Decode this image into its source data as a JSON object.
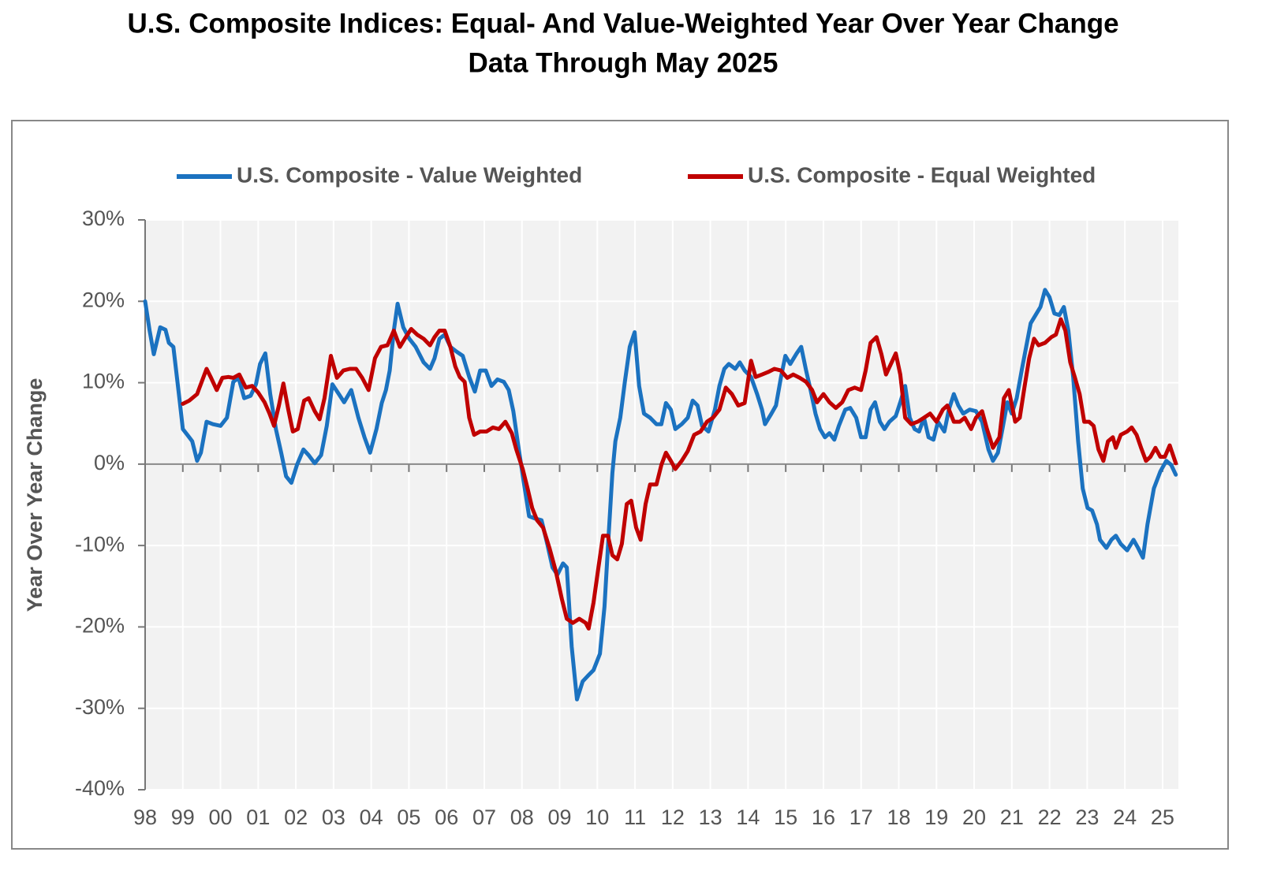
{
  "chart_data": {
    "type": "line",
    "title": "U.S. Composite Indices: Equal- And Value-Weighted Year Over Year Change",
    "subtitle": "Data Through May 2025",
    "ylabel": "Year Over Year Change",
    "xlim": [
      1998,
      2025.42
    ],
    "ylim": [
      -40,
      30
    ],
    "grid": true,
    "legend": "top",
    "xticks": [
      {
        "value": 1998,
        "label": "98"
      },
      {
        "value": 1999,
        "label": "99"
      },
      {
        "value": 2000,
        "label": "00"
      },
      {
        "value": 2001,
        "label": "01"
      },
      {
        "value": 2002,
        "label": "02"
      },
      {
        "value": 2003,
        "label": "03"
      },
      {
        "value": 2004,
        "label": "04"
      },
      {
        "value": 2005,
        "label": "05"
      },
      {
        "value": 2006,
        "label": "06"
      },
      {
        "value": 2007,
        "label": "07"
      },
      {
        "value": 2008,
        "label": "08"
      },
      {
        "value": 2009,
        "label": "09"
      },
      {
        "value": 2010,
        "label": "10"
      },
      {
        "value": 2011,
        "label": "11"
      },
      {
        "value": 2012,
        "label": "12"
      },
      {
        "value": 2013,
        "label": "13"
      },
      {
        "value": 2014,
        "label": "14"
      },
      {
        "value": 2015,
        "label": "15"
      },
      {
        "value": 2016,
        "label": "16"
      },
      {
        "value": 2017,
        "label": "17"
      },
      {
        "value": 2018,
        "label": "18"
      },
      {
        "value": 2019,
        "label": "19"
      },
      {
        "value": 2020,
        "label": "20"
      },
      {
        "value": 2021,
        "label": "21"
      },
      {
        "value": 2022,
        "label": "22"
      },
      {
        "value": 2023,
        "label": "23"
      },
      {
        "value": 2024,
        "label": "24"
      },
      {
        "value": 2025,
        "label": "25"
      }
    ],
    "yticks": [
      {
        "value": 30,
        "label": "30%"
      },
      {
        "value": 20,
        "label": "20%"
      },
      {
        "value": 10,
        "label": "10%"
      },
      {
        "value": 0,
        "label": "0%"
      },
      {
        "value": -10,
        "label": "-10%"
      },
      {
        "value": -20,
        "label": "-20%"
      },
      {
        "value": -30,
        "label": "-30%"
      },
      {
        "value": -40,
        "label": "-40%"
      }
    ],
    "series": [
      {
        "name": "U.S. Composite - Value Weighted",
        "color": "#1b72c0",
        "x": [
          1998.0,
          1998.12,
          1998.23,
          1998.4,
          1998.54,
          1998.63,
          1998.75,
          1998.92,
          1999.0,
          1999.17,
          1999.25,
          1999.38,
          1999.48,
          1999.63,
          1999.8,
          2000.0,
          2000.17,
          2000.34,
          2000.48,
          2000.63,
          2000.8,
          2000.94,
          2001.05,
          2001.19,
          2001.32,
          2001.47,
          2001.61,
          2001.74,
          2001.88,
          2002.03,
          2002.2,
          2002.34,
          2002.5,
          2002.67,
          2002.82,
          2002.97,
          2003.14,
          2003.28,
          2003.47,
          2003.66,
          2003.82,
          2003.97,
          2004.14,
          2004.28,
          2004.39,
          2004.49,
          2004.6,
          2004.7,
          2004.85,
          2005.01,
          2005.18,
          2005.39,
          2005.56,
          2005.68,
          2005.81,
          2005.95,
          2006.1,
          2006.27,
          2006.43,
          2006.6,
          2006.75,
          2006.89,
          2007.04,
          2007.19,
          2007.35,
          2007.52,
          2007.65,
          2007.77,
          2007.9,
          2008.04,
          2008.19,
          2008.36,
          2008.52,
          2008.67,
          2008.81,
          2008.94,
          2009.09,
          2009.19,
          2009.32,
          2009.46,
          2009.61,
          2009.75,
          2009.9,
          2010.07,
          2010.19,
          2010.3,
          2010.4,
          2010.48,
          2010.61,
          2010.73,
          2010.86,
          2010.99,
          2011.11,
          2011.24,
          2011.4,
          2011.57,
          2011.7,
          2011.82,
          2011.95,
          2012.07,
          2012.24,
          2012.4,
          2012.53,
          2012.66,
          2012.78,
          2012.95,
          2013.12,
          2013.24,
          2013.37,
          2013.49,
          2013.66,
          2013.78,
          2013.91,
          2014.08,
          2014.24,
          2014.37,
          2014.45,
          2014.62,
          2014.74,
          2014.87,
          2014.99,
          2015.12,
          2015.29,
          2015.41,
          2015.54,
          2015.66,
          2015.79,
          2015.91,
          2016.04,
          2016.16,
          2016.29,
          2016.41,
          2016.58,
          2016.71,
          2016.87,
          2017.0,
          2017.12,
          2017.25,
          2017.37,
          2017.5,
          2017.62,
          2017.75,
          2017.92,
          2018.04,
          2018.17,
          2018.29,
          2018.42,
          2018.54,
          2018.67,
          2018.79,
          2018.92,
          2019.04,
          2019.21,
          2019.33,
          2019.46,
          2019.58,
          2019.71,
          2019.88,
          2020.05,
          2020.21,
          2020.38,
          2020.5,
          2020.63,
          2020.75,
          2020.88,
          2021.0,
          2021.13,
          2021.26,
          2021.38,
          2021.5,
          2021.63,
          2021.76,
          2021.88,
          2022.0,
          2022.13,
          2022.26,
          2022.38,
          2022.5,
          2022.63,
          2022.76,
          2022.88,
          2023.01,
          2023.13,
          2023.26,
          2023.34,
          2023.51,
          2023.64,
          2023.76,
          2023.89,
          2024.06,
          2024.23,
          2024.35,
          2024.48,
          2024.6,
          2024.77,
          2024.94,
          2025.1,
          2025.23,
          2025.35
        ],
        "values": [
          20,
          16.4,
          13.5,
          16.8,
          16.5,
          14.9,
          14.4,
          7.6,
          4.3,
          3.3,
          2.8,
          0.4,
          1.4,
          5.2,
          4.9,
          4.7,
          5.7,
          10.1,
          10.6,
          8.1,
          8.4,
          9.8,
          12.3,
          13.6,
          8.6,
          4.3,
          1.4,
          -1.5,
          -2.3,
          -0.1,
          1.8,
          1.1,
          0.1,
          1.1,
          4.7,
          9.8,
          8.6,
          7.6,
          9.1,
          5.7,
          3.3,
          1.4,
          4.3,
          7.5,
          9.1,
          11.5,
          16.4,
          19.7,
          16.8,
          15.4,
          14.4,
          12.5,
          11.7,
          13.0,
          15.4,
          15.9,
          14.4,
          13.8,
          13.3,
          10.7,
          8.9,
          11.5,
          11.5,
          9.6,
          10.4,
          10.1,
          9.1,
          6.5,
          2.3,
          -2.0,
          -6.4,
          -6.7,
          -6.9,
          -9.8,
          -12.7,
          -13.6,
          -12.2,
          -12.7,
          -22.4,
          -28.9,
          -26.7,
          -26.0,
          -25.3,
          -23.3,
          -17.5,
          -8.8,
          -1.1,
          2.8,
          5.7,
          10.1,
          14.4,
          16.2,
          9.6,
          6.2,
          5.7,
          4.9,
          4.9,
          7.5,
          6.7,
          4.3,
          4.9,
          5.7,
          7.8,
          7.2,
          4.7,
          4.0,
          6.7,
          9.6,
          11.7,
          12.3,
          11.7,
          12.5,
          11.5,
          10.7,
          8.6,
          6.7,
          4.9,
          6.2,
          7.2,
          10.6,
          13.3,
          12.3,
          13.6,
          14.4,
          11.5,
          9.1,
          6.2,
          4.3,
          3.3,
          3.8,
          3.0,
          4.7,
          6.7,
          6.9,
          5.7,
          3.3,
          3.3,
          6.7,
          7.6,
          5.2,
          4.3,
          5.2,
          5.9,
          7.6,
          9.6,
          5.7,
          4.3,
          4.0,
          5.7,
          3.3,
          3.0,
          5.2,
          4.0,
          6.7,
          8.6,
          7.2,
          6.2,
          6.7,
          6.5,
          5.2,
          1.8,
          0.4,
          1.4,
          4.3,
          7.6,
          6.2,
          8.1,
          11.5,
          14.4,
          17.3,
          18.3,
          19.3,
          21.4,
          20.5,
          18.5,
          18.3,
          19.3,
          16.4,
          10.6,
          2.8,
          -3.0,
          -5.4,
          -5.7,
          -7.4,
          -9.3,
          -10.3,
          -9.3,
          -8.8,
          -9.8,
          -10.6,
          -9.3,
          -10.3,
          -11.5,
          -7.4,
          -3.0,
          -0.9,
          0.4,
          -0.1,
          -1.3
        ]
      },
      {
        "name": "U.S. Composite - Equal Weighted",
        "color": "#c00000",
        "x": [
          1999.0,
          1999.17,
          1999.38,
          1999.5,
          1999.63,
          1999.75,
          1999.9,
          2000.05,
          2000.21,
          2000.34,
          2000.5,
          2000.67,
          2000.84,
          2001.0,
          2001.17,
          2001.3,
          2001.42,
          2001.55,
          2001.67,
          2001.8,
          2001.92,
          2002.05,
          2002.22,
          2002.34,
          2002.5,
          2002.63,
          2002.76,
          2002.93,
          2003.09,
          2003.26,
          2003.43,
          2003.6,
          2003.76,
          2003.93,
          2004.1,
          2004.26,
          2004.43,
          2004.6,
          2004.76,
          2004.89,
          2005.06,
          2005.22,
          2005.39,
          2005.56,
          2005.68,
          2005.81,
          2005.95,
          2006.1,
          2006.23,
          2006.35,
          2006.48,
          2006.6,
          2006.73,
          2006.89,
          2007.06,
          2007.23,
          2007.39,
          2007.56,
          2007.73,
          2007.85,
          2008.02,
          2008.15,
          2008.27,
          2008.4,
          2008.56,
          2008.73,
          2008.9,
          2009.06,
          2009.19,
          2009.35,
          2009.52,
          2009.69,
          2009.77,
          2009.9,
          2010.03,
          2010.15,
          2010.28,
          2010.4,
          2010.53,
          2010.65,
          2010.78,
          2010.9,
          2011.03,
          2011.15,
          2011.28,
          2011.4,
          2011.57,
          2011.7,
          2011.82,
          2011.95,
          2012.07,
          2012.24,
          2012.4,
          2012.57,
          2012.74,
          2012.91,
          2013.07,
          2013.24,
          2013.41,
          2013.57,
          2013.74,
          2013.91,
          2014.08,
          2014.2,
          2014.37,
          2014.53,
          2014.7,
          2014.87,
          2015.04,
          2015.2,
          2015.37,
          2015.54,
          2015.7,
          2015.83,
          2016.0,
          2016.16,
          2016.33,
          2016.5,
          2016.66,
          2016.83,
          2017.0,
          2017.12,
          2017.25,
          2017.41,
          2017.54,
          2017.66,
          2017.79,
          2017.92,
          2018.04,
          2018.17,
          2018.33,
          2018.5,
          2018.67,
          2018.83,
          2019.0,
          2019.17,
          2019.29,
          2019.46,
          2019.62,
          2019.75,
          2019.92,
          2020.05,
          2020.21,
          2020.34,
          2020.5,
          2020.67,
          2020.79,
          2020.92,
          2021.09,
          2021.21,
          2021.34,
          2021.46,
          2021.59,
          2021.71,
          2021.88,
          2022.05,
          2022.17,
          2022.3,
          2022.42,
          2022.55,
          2022.67,
          2022.8,
          2022.92,
          2023.05,
          2023.17,
          2023.3,
          2023.43,
          2023.55,
          2023.68,
          2023.76,
          2023.89,
          2024.06,
          2024.18,
          2024.31,
          2024.43,
          2024.56,
          2024.68,
          2024.81,
          2024.94,
          2025.06,
          2025.19,
          2025.35
        ],
        "values": [
          7.4,
          7.8,
          8.6,
          10.1,
          11.7,
          10.6,
          9.1,
          10.6,
          10.7,
          10.6,
          11.0,
          9.4,
          9.6,
          8.8,
          7.6,
          6.2,
          4.7,
          7.2,
          9.9,
          6.7,
          4.0,
          4.3,
          7.8,
          8.1,
          6.5,
          5.5,
          8.1,
          13.3,
          10.6,
          11.5,
          11.7,
          11.7,
          10.6,
          9.1,
          13.0,
          14.4,
          14.6,
          16.4,
          14.4,
          15.4,
          16.6,
          15.9,
          15.4,
          14.6,
          15.6,
          16.4,
          16.4,
          14.4,
          12.0,
          10.7,
          10.1,
          5.7,
          3.6,
          4.0,
          4.0,
          4.5,
          4.3,
          5.2,
          3.8,
          1.8,
          -0.6,
          -3.0,
          -5.4,
          -6.9,
          -7.8,
          -10.3,
          -13.2,
          -16.6,
          -19.0,
          -19.5,
          -19.0,
          -19.5,
          -20.2,
          -17.0,
          -12.7,
          -8.8,
          -8.8,
          -11.2,
          -11.7,
          -9.8,
          -4.9,
          -4.5,
          -7.8,
          -9.3,
          -4.9,
          -2.5,
          -2.5,
          -0.1,
          1.4,
          0.4,
          -0.6,
          0.4,
          1.6,
          3.6,
          4.0,
          5.2,
          5.7,
          6.7,
          9.4,
          8.6,
          7.2,
          7.5,
          12.7,
          10.7,
          11.0,
          11.3,
          11.7,
          11.5,
          10.6,
          11.0,
          10.6,
          10.1,
          9.1,
          7.6,
          8.6,
          7.6,
          6.9,
          7.6,
          9.1,
          9.4,
          9.1,
          11.5,
          14.9,
          15.6,
          13.5,
          11.0,
          12.3,
          13.6,
          11.0,
          5.7,
          4.9,
          5.2,
          5.7,
          6.2,
          5.2,
          6.7,
          7.2,
          5.2,
          5.2,
          5.7,
          4.3,
          5.7,
          6.5,
          4.3,
          2.0,
          3.3,
          8.1,
          9.1,
          5.2,
          5.7,
          9.6,
          13.0,
          15.4,
          14.6,
          14.9,
          15.6,
          15.9,
          17.8,
          16.4,
          12.5,
          10.7,
          8.6,
          5.2,
          5.2,
          4.7,
          1.8,
          0.4,
          2.8,
          3.3,
          2.0,
          3.6,
          4.0,
          4.5,
          3.6,
          2.0,
          0.4,
          0.9,
          2.0,
          0.9,
          0.9,
          2.3,
          0.1
        ]
      }
    ]
  }
}
